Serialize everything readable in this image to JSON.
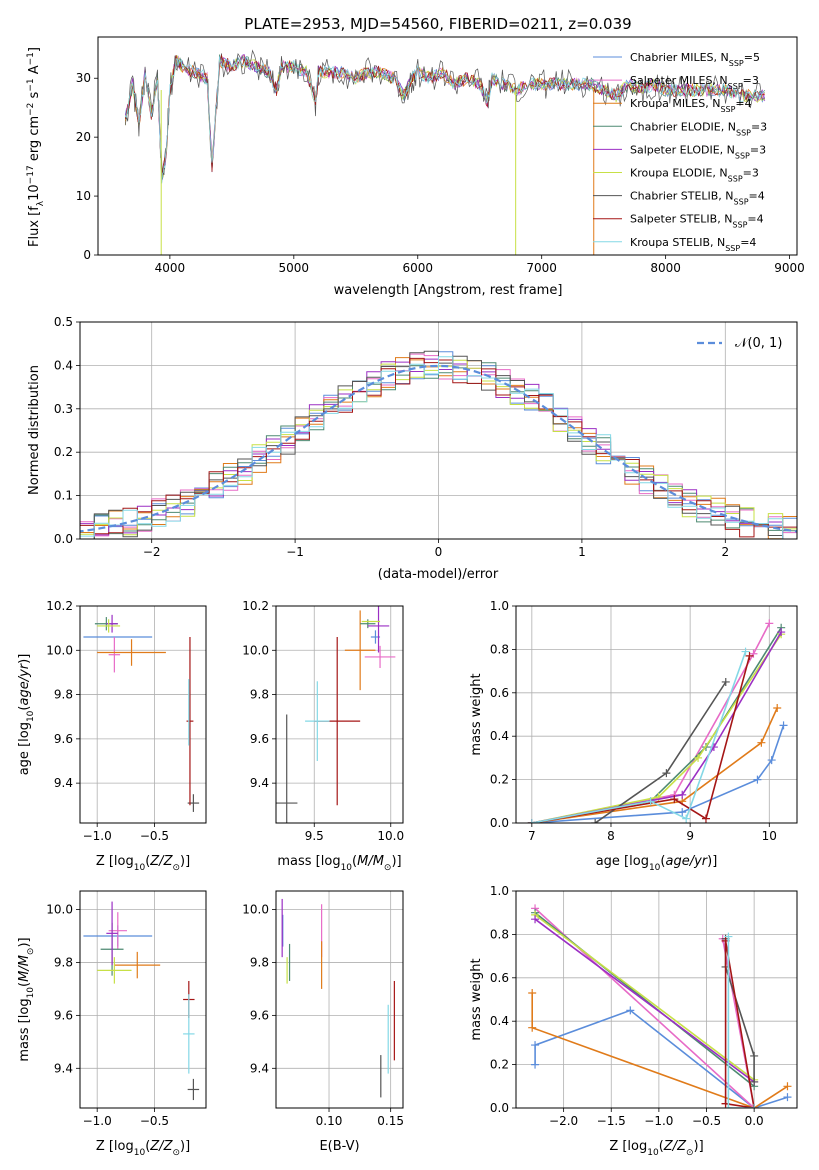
{
  "title": "PLATE=2953, MJD=54560, FIBERID=0211, z=0.039",
  "colors": {
    "chabrier_miles": "#5b8ddb",
    "salpeter_miles": "#e76bc7",
    "kroupa_miles": "#e07b1a",
    "chabrier_elodie": "#4e8a72",
    "salpeter_elodie": "#9b2fc4",
    "kroupa_elodie": "#c7e046",
    "chabrier_stelib": "#555555",
    "salpeter_stelib": "#a51616",
    "kroupa_stelib": "#84d8e6",
    "normal": "#5b8ddb"
  },
  "chart_data": [
    {
      "id": "spectrum",
      "type": "line",
      "title": "PLATE=2953, MJD=54560, FIBERID=0211, z=0.039",
      "xlabel": "wavelength [Angstrom, rest frame]",
      "ylabel_main": "Flux [f",
      "ylabel_sub": "λ",
      "ylabel_rest": "10",
      "ylabel_exp1": "−17",
      "ylabel_mid": " erg cm",
      "ylabel_exp2": "−2",
      "ylabel_s": " s",
      "ylabel_exp3": "−1",
      "ylabel_A": " A",
      "ylabel_exp4": "−1",
      "ylabel_close": "]",
      "xlim": [
        3420,
        9060
      ],
      "ylim": [
        0,
        37
      ],
      "xticks": [
        4000,
        5000,
        6000,
        7000,
        8000,
        9000
      ],
      "yticks": [
        0,
        10,
        20,
        30
      ],
      "grid": false,
      "legend_position": "right",
      "series": [
        {
          "name": "Chabrier MILES, N",
          "sub": "SSP",
          "suffix": "=5",
          "key": "chabrier_miles"
        },
        {
          "name": "Salpeter MILES, N",
          "sub": "SSP",
          "suffix": "=3",
          "key": "salpeter_miles"
        },
        {
          "name": "Kroupa MILES, N",
          "sub": "SSP",
          "suffix": "=4",
          "key": "kroupa_miles"
        },
        {
          "name": "Chabrier ELODIE, N",
          "sub": "SSP",
          "suffix": "=3",
          "key": "chabrier_elodie"
        },
        {
          "name": "Salpeter ELODIE, N",
          "sub": "SSP",
          "suffix": "=3",
          "key": "salpeter_elodie"
        },
        {
          "name": "Kroupa ELODIE, N",
          "sub": "SSP",
          "suffix": "=3",
          "key": "kroupa_elodie"
        },
        {
          "name": "Chabrier STELIB, N",
          "sub": "SSP",
          "suffix": "=4",
          "key": "chabrier_stelib"
        },
        {
          "name": "Salpeter STELIB, N",
          "sub": "SSP",
          "suffix": "=4",
          "key": "salpeter_stelib"
        },
        {
          "name": "Kroupa STELIB, N",
          "sub": "SSP",
          "suffix": "=4",
          "key": "kroupa_stelib"
        }
      ],
      "data_x": [
        3640,
        3700,
        3750,
        3800,
        3850,
        3900,
        3935,
        3970,
        4000,
        4050,
        4100,
        4200,
        4300,
        4340,
        4400,
        4500,
        4600,
        4700,
        4800,
        4861,
        4900,
        5000,
        5100,
        5175,
        5200,
        5300,
        5400,
        5500,
        5600,
        5700,
        5800,
        5890,
        5950,
        6000,
        6100,
        6200,
        6300,
        6400,
        6500,
        6563,
        6600,
        6700,
        6800,
        6900,
        7000,
        7100,
        7200,
        7300,
        7400,
        7500,
        7600,
        7700,
        7800,
        7900,
        8000,
        8100,
        8200,
        8300,
        8400,
        8500,
        8600,
        8700,
        8820
      ],
      "data_y": [
        23,
        29,
        22,
        31,
        24,
        30,
        13,
        17,
        28,
        33,
        32,
        31,
        30,
        15,
        33,
        32,
        33,
        32,
        31,
        28,
        32,
        32,
        31,
        26,
        31,
        31,
        31,
        30,
        31,
        31,
        30,
        27,
        30,
        31,
        30,
        31,
        29,
        30,
        29,
        26,
        30,
        29,
        28,
        29,
        29,
        29,
        29,
        29,
        29,
        28,
        27,
        29,
        28,
        29,
        28,
        28,
        28,
        28,
        28,
        28,
        27,
        27,
        27
      ],
      "drops": [
        {
          "key": "kroupa_elodie",
          "x": 3930,
          "y": 0
        },
        {
          "key": "kroupa_elodie",
          "x": 6790,
          "y": 0
        },
        {
          "key": "kroupa_miles",
          "x": 7420,
          "y": 0
        }
      ]
    },
    {
      "id": "residual_hist",
      "type": "line",
      "xlabel": "(data-model)/error",
      "ylabel": "Normed distribution",
      "xlim": [
        -2.5,
        2.5
      ],
      "ylim": [
        0,
        0.5
      ],
      "xticks": [
        -2,
        -1,
        0,
        1,
        2
      ],
      "yticks": [
        0.0,
        0.1,
        0.2,
        0.3,
        0.4,
        0.5
      ],
      "grid": true,
      "legend_position": "top-right",
      "legend_label": "𝒩(0, 1)",
      "bin_width": 0.1
    },
    {
      "id": "age_vs_Z",
      "type": "scatter",
      "xlabel": "Z [log",
      "xlabel_sub": "10",
      "xlabel_rest": "(Z/Z",
      "xlabel_odot": "⊙",
      "xlabel_close": ")]",
      "ylabel": "age  [log",
      "ylabel_sub": "10",
      "ylabel_rest": "(age/yr)]",
      "xlim": [
        -1.15,
        -0.05
      ],
      "ylim": [
        9.22,
        10.2
      ],
      "xticks": [
        -1.0,
        -0.5
      ],
      "yticks": [
        9.4,
        9.6,
        9.8,
        10.0,
        10.2
      ],
      "grid": true,
      "points": [
        {
          "key": "chabrier_miles",
          "x": -0.82,
          "y": 10.06,
          "xerr": 0.3,
          "yerr": 0.0
        },
        {
          "key": "salpeter_miles",
          "x": -0.85,
          "y": 9.98,
          "xerr": 0.05,
          "yerr": 0.08
        },
        {
          "key": "kroupa_miles",
          "x": -0.7,
          "y": 9.99,
          "xerr": 0.3,
          "yerr": 0.06
        },
        {
          "key": "chabrier_elodie",
          "x": -0.92,
          "y": 10.12,
          "xerr": 0.1,
          "yerr": 0.03
        },
        {
          "key": "salpeter_elodie",
          "x": -0.87,
          "y": 10.12,
          "xerr": 0.05,
          "yerr": 0.04
        },
        {
          "key": "kroupa_elodie",
          "x": -0.9,
          "y": 10.11,
          "xerr": 0.1,
          "yerr": 0.03
        },
        {
          "key": "chabrier_stelib",
          "x": -0.16,
          "y": 9.31,
          "xerr": 0.05,
          "yerr": 0.04
        },
        {
          "key": "salpeter_stelib",
          "x": -0.19,
          "y": 9.68,
          "xerr": 0.03,
          "yerr": 0.38
        },
        {
          "key": "kroupa_stelib",
          "x": -0.2,
          "y": 9.72,
          "xerr": 0.0,
          "yerr": 0.15
        }
      ]
    },
    {
      "id": "age_vs_mass",
      "type": "scatter",
      "xlabel": "mass [log",
      "xlabel_sub": "10",
      "xlabel_rest": "(M/M",
      "xlabel_odot": "⊙",
      "xlabel_close": ")]",
      "xlim": [
        9.25,
        10.08
      ],
      "ylim": [
        9.22,
        10.2
      ],
      "xticks": [
        9.5,
        10.0
      ],
      "yticks": [
        9.4,
        9.6,
        9.8,
        10.0,
        10.2
      ],
      "grid": true,
      "points": [
        {
          "key": "chabrier_miles",
          "x": 9.9,
          "y": 10.06,
          "xerr": 0.03,
          "yerr": 0.03
        },
        {
          "key": "salpeter_miles",
          "x": 9.93,
          "y": 9.97,
          "xerr": 0.1,
          "yerr": 0.05
        },
        {
          "key": "kroupa_miles",
          "x": 9.8,
          "y": 10.0,
          "xerr": 0.1,
          "yerr": 0.18
        },
        {
          "key": "chabrier_elodie",
          "x": 9.85,
          "y": 10.12,
          "xerr": 0.05,
          "yerr": 0.02
        },
        {
          "key": "salpeter_elodie",
          "x": 9.92,
          "y": 10.11,
          "xerr": 0.07,
          "yerr": 0.12
        },
        {
          "key": "kroupa_elodie",
          "x": 9.87,
          "y": 10.13,
          "xerr": 0.06,
          "yerr": 0.0
        },
        {
          "key": "chabrier_stelib",
          "x": 9.32,
          "y": 9.31,
          "xerr": 0.07,
          "yerr": 0.4
        },
        {
          "key": "salpeter_stelib",
          "x": 9.65,
          "y": 9.68,
          "xerr": 0.15,
          "yerr": 0.38
        },
        {
          "key": "kroupa_stelib",
          "x": 9.52,
          "y": 9.68,
          "xerr": 0.08,
          "yerr": 0.18
        }
      ]
    },
    {
      "id": "massweight_vs_age",
      "type": "line",
      "xlabel": "age  [log",
      "xlabel_sub": "10",
      "xlabel_rest": "(age/yr)]",
      "ylabel": "mass weight",
      "xlim": [
        6.8,
        10.35
      ],
      "ylim": [
        0,
        1
      ],
      "xticks": [
        7,
        8,
        9,
        10
      ],
      "yticks": [
        0.0,
        0.2,
        0.4,
        0.6,
        0.8,
        1.0
      ],
      "grid": true,
      "series": [
        {
          "key": "chabrier_miles",
          "x": [
            7.0,
            8.9,
            9.85,
            10.03,
            10.18
          ],
          "y": [
            0.0,
            0.05,
            0.2,
            0.29,
            0.45
          ]
        },
        {
          "key": "kroupa_miles",
          "x": [
            7.0,
            8.9,
            9.9,
            10.1
          ],
          "y": [
            0.0,
            0.1,
            0.37,
            0.53
          ]
        },
        {
          "key": "salpeter_miles",
          "x": [
            7.0,
            8.8,
            9.8,
            10.0
          ],
          "y": [
            0.0,
            0.13,
            0.78,
            0.92
          ]
        },
        {
          "key": "chabrier_elodie",
          "x": [
            7.0,
            8.5,
            9.2,
            10.15
          ],
          "y": [
            0.0,
            0.1,
            0.35,
            0.9
          ]
        },
        {
          "key": "kroupa_elodie",
          "x": [
            7.0,
            8.6,
            9.1,
            10.15
          ],
          "y": [
            0.0,
            0.12,
            0.3,
            0.87
          ]
        },
        {
          "key": "salpeter_elodie",
          "x": [
            7.0,
            8.9,
            9.3,
            10.15
          ],
          "y": [
            0.0,
            0.13,
            0.35,
            0.88
          ]
        },
        {
          "key": "chabrier_stelib",
          "x": [
            7.8,
            8.7,
            9.45
          ],
          "y": [
            0.0,
            0.23,
            0.65
          ]
        },
        {
          "key": "salpeter_stelib",
          "x": [
            7.0,
            8.8,
            9.2,
            9.75
          ],
          "y": [
            0.0,
            0.11,
            0.02,
            0.77
          ]
        },
        {
          "key": "kroupa_stelib",
          "x": [
            7.0,
            8.5,
            8.95,
            9.7
          ],
          "y": [
            0.0,
            0.1,
            0.02,
            0.79
          ]
        }
      ]
    },
    {
      "id": "mass_vs_Z",
      "type": "scatter",
      "xlabel": "Z [log",
      "xlabel_sub": "10",
      "xlabel_rest": "(Z/Z",
      "xlabel_odot": "⊙",
      "xlabel_close": ")]",
      "ylabel": "mass [log",
      "ylabel_sub": "10",
      "ylabel_rest": "(M/M",
      "ylabel_odot": "⊙",
      "ylabel_close": ")]",
      "xlim": [
        -1.15,
        -0.05
      ],
      "ylim": [
        9.25,
        10.07
      ],
      "xticks": [
        -1.0,
        -0.5
      ],
      "yticks": [
        9.4,
        9.6,
        9.8,
        10.0
      ],
      "grid": true,
      "points": [
        {
          "key": "chabrier_miles",
          "x": -0.82,
          "y": 9.9,
          "xerr": 0.3,
          "yerr": 0.04
        },
        {
          "key": "salpeter_miles",
          "x": -0.82,
          "y": 9.92,
          "xerr": 0.08,
          "yerr": 0.07
        },
        {
          "key": "kroupa_miles",
          "x": -0.65,
          "y": 9.79,
          "xerr": 0.2,
          "yerr": 0.05
        },
        {
          "key": "chabrier_elodie",
          "x": -0.87,
          "y": 9.85,
          "xerr": 0.1,
          "yerr": 0.1
        },
        {
          "key": "salpeter_elodie",
          "x": -0.87,
          "y": 9.91,
          "xerr": 0.05,
          "yerr": 0.12
        },
        {
          "key": "kroupa_elodie",
          "x": -0.85,
          "y": 9.77,
          "xerr": 0.15,
          "yerr": 0.05
        },
        {
          "key": "chabrier_stelib",
          "x": -0.16,
          "y": 9.32,
          "xerr": 0.05,
          "yerr": 0.04
        },
        {
          "key": "salpeter_stelib",
          "x": -0.2,
          "y": 9.66,
          "xerr": 0.05,
          "yerr": 0.07
        },
        {
          "key": "kroupa_stelib",
          "x": -0.2,
          "y": 9.53,
          "xerr": 0.05,
          "yerr": 0.15
        }
      ]
    },
    {
      "id": "mass_vs_ebv",
      "type": "scatter",
      "xlabel": "E(B-V)",
      "xlim": [
        0.057,
        0.16
      ],
      "ylim": [
        9.25,
        10.07
      ],
      "xticks": [
        0.1,
        0.15
      ],
      "yticks": [
        9.4,
        9.6,
        9.8,
        10.0
      ],
      "grid": true,
      "points": [
        {
          "key": "chabrier_miles",
          "x": 0.0625,
          "y": 9.92,
          "xerr": 0.0,
          "yerr": 0.06
        },
        {
          "key": "salpeter_miles",
          "x": 0.094,
          "y": 9.92,
          "xerr": 0.0,
          "yerr": 0.1
        },
        {
          "key": "kroupa_miles",
          "x": 0.094,
          "y": 9.79,
          "xerr": 0.0,
          "yerr": 0.09
        },
        {
          "key": "chabrier_elodie",
          "x": 0.068,
          "y": 9.8,
          "xerr": 0.0,
          "yerr": 0.07
        },
        {
          "key": "salpeter_elodie",
          "x": 0.062,
          "y": 9.93,
          "xerr": 0.0,
          "yerr": 0.11
        },
        {
          "key": "kroupa_elodie",
          "x": 0.066,
          "y": 9.77,
          "xerr": 0.0,
          "yerr": 0.05
        },
        {
          "key": "chabrier_stelib",
          "x": 0.142,
          "y": 9.37,
          "xerr": 0.0,
          "yerr": 0.08
        },
        {
          "key": "salpeter_stelib",
          "x": 0.153,
          "y": 9.58,
          "xerr": 0.0,
          "yerr": 0.15
        },
        {
          "key": "kroupa_stelib",
          "x": 0.148,
          "y": 9.51,
          "xerr": 0.0,
          "yerr": 0.13
        }
      ]
    },
    {
      "id": "massweight_vs_Z",
      "type": "line",
      "xlabel": "Z [log",
      "xlabel_sub": "10",
      "xlabel_rest": "(Z/Z",
      "xlabel_odot": "⊙",
      "xlabel_close": ")]",
      "ylabel": "mass weight",
      "xlim": [
        -2.5,
        0.45
      ],
      "ylim": [
        0,
        1
      ],
      "xticks": [
        -2.0,
        -1.5,
        -1.0,
        -0.5,
        0.0
      ],
      "xticklabels": [
        "−2.0",
        "−1.5",
        "−1.0",
        "−0.5",
        "0.0"
      ],
      "yticks": [
        0.0,
        0.2,
        0.4,
        0.6,
        0.8,
        1.0
      ],
      "grid": true,
      "series": [
        {
          "key": "chabrier_miles",
          "x": [
            -2.3,
            -2.3,
            -1.3,
            0.0,
            0.35
          ],
          "y": [
            0.2,
            0.29,
            0.45,
            0.0,
            0.05
          ]
        },
        {
          "key": "kroupa_miles",
          "x": [
            -2.33,
            -2.33,
            0.0,
            0.35
          ],
          "y": [
            0.53,
            0.37,
            0.0,
            0.1
          ]
        },
        {
          "key": "salpeter_miles",
          "x": [
            -2.3,
            0.0,
            -0.33
          ],
          "y": [
            0.92,
            0.0,
            0.78
          ]
        },
        {
          "key": "chabrier_elodie",
          "x": [
            -2.3,
            0.0
          ],
          "y": [
            0.9,
            0.1
          ]
        },
        {
          "key": "kroupa_elodie",
          "x": [
            -2.3,
            0.0
          ],
          "y": [
            0.89,
            0.13
          ]
        },
        {
          "key": "salpeter_elodie",
          "x": [
            -2.3,
            0.0
          ],
          "y": [
            0.87,
            0.12
          ]
        },
        {
          "key": "chabrier_stelib",
          "x": [
            -0.3,
            -0.3,
            0.0,
            0.0
          ],
          "y": [
            0.78,
            0.65,
            0.24,
            0.12
          ]
        },
        {
          "key": "salpeter_stelib",
          "x": [
            -0.3,
            -0.3,
            0.0,
            -0.3
          ],
          "y": [
            0.02,
            0.77,
            0.0,
            0.02
          ]
        },
        {
          "key": "kroupa_stelib",
          "x": [
            -0.27,
            -0.27,
            0.0
          ],
          "y": [
            0.79,
            0.0,
            0.0
          ]
        }
      ]
    }
  ]
}
